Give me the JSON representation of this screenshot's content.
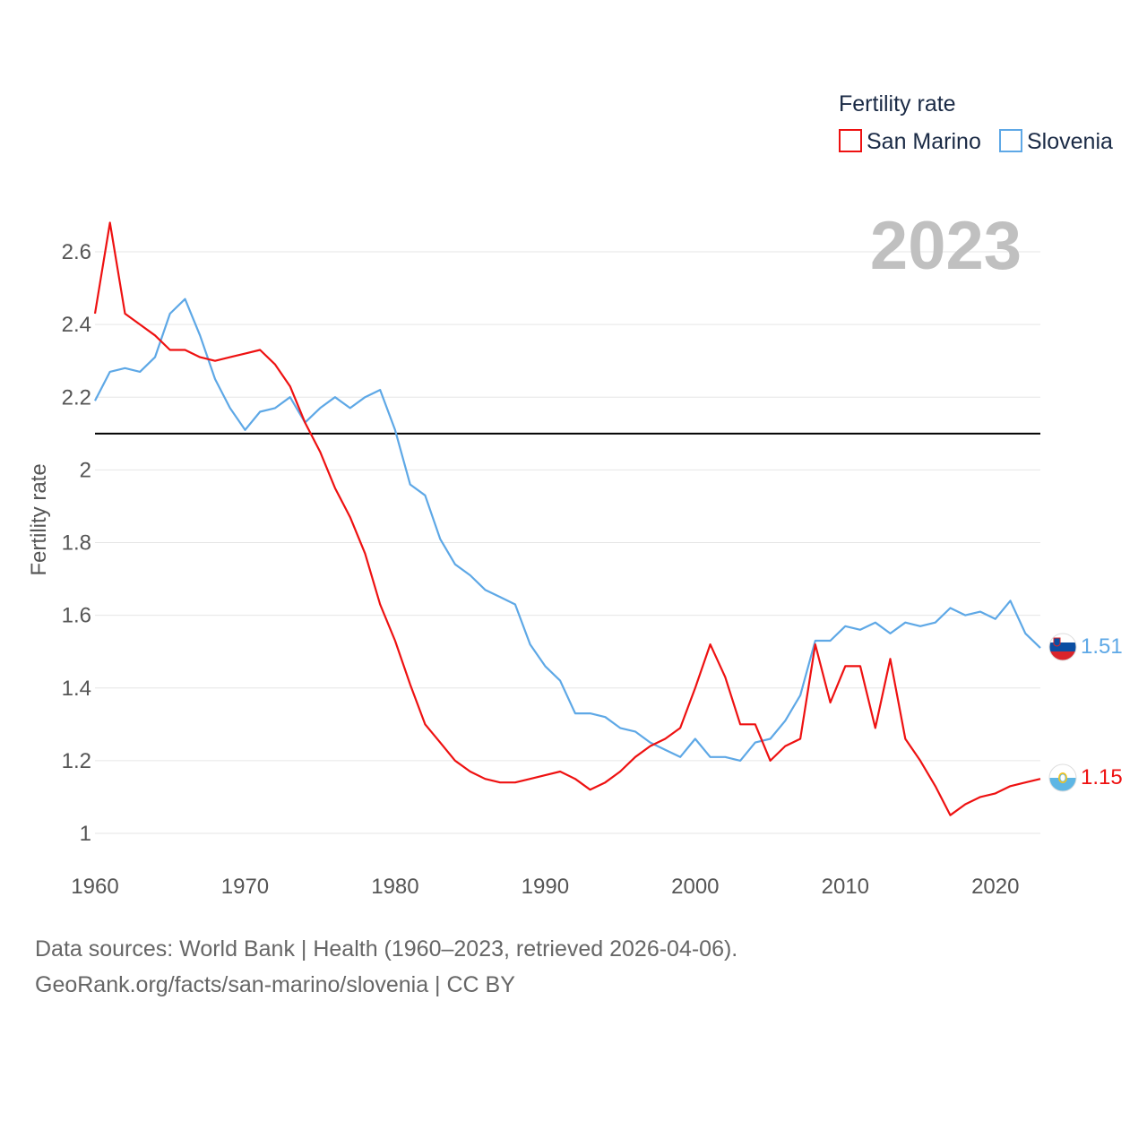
{
  "legend": {
    "title": "Fertility rate",
    "items": [
      {
        "label": "San Marino",
        "color": "#ee1111"
      },
      {
        "label": "Slovenia",
        "color": "#5ea8e6"
      }
    ]
  },
  "year_label": "2023",
  "footer": {
    "line1": "Data sources: World Bank | Health (1960–2023, retrieved 2026-04-06).",
    "line2": "GeoRank.org/facts/san-marino/slovenia | CC BY"
  },
  "end_labels": {
    "slovenia": "1.51",
    "san_marino": "1.15"
  },
  "flags": {
    "slovenia": "slovenia-flag-icon",
    "san_marino": "san-marino-flag-icon"
  },
  "chart_data": {
    "type": "line",
    "title": "",
    "xlabel": "",
    "ylabel": "Fertility rate",
    "xlim": [
      1960,
      2023
    ],
    "ylim": [
      1,
      2.6
    ],
    "x_ticks": [
      1960,
      1970,
      1980,
      1990,
      2000,
      2010,
      2020
    ],
    "x_tick_labels": [
      "1960",
      "1970",
      "1980",
      "1990",
      "2000",
      "2010",
      "2020"
    ],
    "y_ticks": [
      1,
      1.2,
      1.4,
      1.6,
      1.8,
      2,
      2.2,
      2.4,
      2.6
    ],
    "y_tick_labels": [
      "1",
      "1.2",
      "1.4",
      "1.6",
      "1.8",
      "2",
      "2.2",
      "2.4",
      "2.6"
    ],
    "reference_line": {
      "y": 2.1,
      "color": "#000000"
    },
    "x": [
      1960,
      1961,
      1962,
      1963,
      1964,
      1965,
      1966,
      1967,
      1968,
      1969,
      1970,
      1971,
      1972,
      1973,
      1974,
      1975,
      1976,
      1977,
      1978,
      1979,
      1980,
      1981,
      1982,
      1983,
      1984,
      1985,
      1986,
      1987,
      1988,
      1989,
      1990,
      1991,
      1992,
      1993,
      1994,
      1995,
      1996,
      1997,
      1998,
      1999,
      2000,
      2001,
      2002,
      2003,
      2004,
      2005,
      2006,
      2007,
      2008,
      2009,
      2010,
      2011,
      2012,
      2013,
      2014,
      2015,
      2016,
      2017,
      2018,
      2019,
      2020,
      2021,
      2022,
      2023
    ],
    "series": [
      {
        "name": "San Marino",
        "color": "#ee1111",
        "values": [
          2.43,
          2.68,
          2.43,
          2.4,
          2.37,
          2.33,
          2.33,
          2.31,
          2.3,
          2.31,
          2.32,
          2.33,
          2.29,
          2.23,
          2.13,
          2.05,
          1.95,
          1.87,
          1.77,
          1.63,
          1.53,
          1.41,
          1.3,
          1.25,
          1.2,
          1.17,
          1.15,
          1.14,
          1.14,
          1.15,
          1.16,
          1.17,
          1.15,
          1.12,
          1.14,
          1.17,
          1.21,
          1.24,
          1.26,
          1.29,
          1.4,
          1.52,
          1.43,
          1.3,
          1.3,
          1.2,
          1.24,
          1.26,
          1.52,
          1.36,
          1.46,
          1.46,
          1.29,
          1.48,
          1.26,
          1.2,
          1.13,
          1.05,
          1.08,
          1.1,
          1.11,
          1.13,
          1.14,
          1.15
        ]
      },
      {
        "name": "Slovenia",
        "color": "#5ea8e6",
        "values": [
          2.19,
          2.27,
          2.28,
          2.27,
          2.31,
          2.43,
          2.47,
          2.37,
          2.25,
          2.17,
          2.11,
          2.16,
          2.17,
          2.2,
          2.13,
          2.17,
          2.2,
          2.17,
          2.2,
          2.22,
          2.11,
          1.96,
          1.93,
          1.81,
          1.74,
          1.71,
          1.67,
          1.65,
          1.63,
          1.52,
          1.46,
          1.42,
          1.33,
          1.33,
          1.32,
          1.29,
          1.28,
          1.25,
          1.23,
          1.21,
          1.26,
          1.21,
          1.21,
          1.2,
          1.25,
          1.26,
          1.31,
          1.38,
          1.53,
          1.53,
          1.57,
          1.56,
          1.58,
          1.55,
          1.58,
          1.57,
          1.58,
          1.62,
          1.6,
          1.61,
          1.59,
          1.64,
          1.55,
          1.51
        ]
      }
    ]
  }
}
